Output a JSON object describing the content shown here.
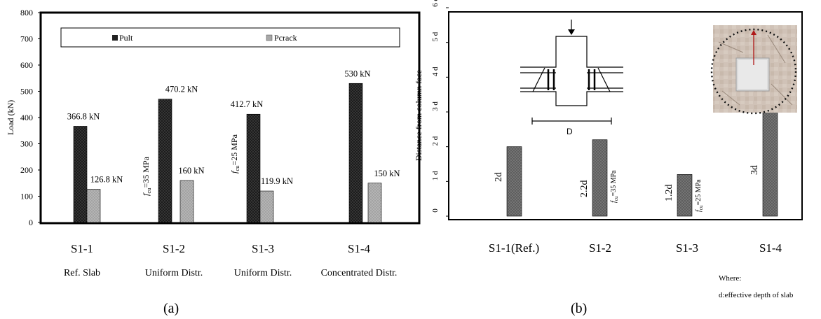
{
  "figure_a": {
    "panel_label": "(a)",
    "category_notes": [
      "Ref. Slab",
      "Uniform Distr.",
      "Uniform Distr.",
      "Concentrated Distr."
    ],
    "bar_notes": [
      "",
      "35 MPa",
      "25 MPa",
      ""
    ]
  },
  "figure_b": {
    "panel_label": "(b)",
    "where_title": "Where:",
    "where_text": "d:effective depth of slab",
    "sketch_label": "D",
    "bar_notes": [
      "",
      "35 MPa",
      "25 MPa",
      ""
    ]
  },
  "chart_data": [
    {
      "type": "bar",
      "title": "",
      "ylabel": "Load (kN)",
      "xlabel": "",
      "ylim": [
        0,
        800
      ],
      "yticks": [
        "0",
        "100",
        "200",
        "300",
        "400",
        "500",
        "600",
        "700",
        "800"
      ],
      "categories": [
        "S1-1",
        "S1-2",
        "S1-3",
        "S1-4"
      ],
      "legend_position": "top",
      "grid": false,
      "series": [
        {
          "name": "Pult",
          "color": "#222222",
          "values": [
            366.8,
            470.2,
            412.7,
            530
          ],
          "labels": [
            "366.8 kN",
            "470.2 kN",
            "412.7 kN",
            "530 kN"
          ]
        },
        {
          "name": "Pcrack",
          "color": "#a8a8a8",
          "values": [
            126.8,
            160,
            119.9,
            150
          ],
          "labels": [
            "126.8 kN",
            "160 kN",
            "119.9 kN",
            "150 kN"
          ]
        }
      ]
    },
    {
      "type": "bar",
      "title": "",
      "ylabel": "Distance from column face",
      "xlabel": "",
      "ylim": [
        0,
        6
      ],
      "yticks": [
        "0",
        "1 d",
        "2 d",
        "3 d",
        "4 d",
        "5 d",
        "6 d"
      ],
      "categories": [
        "S1-1(Ref.)",
        "S1-2",
        "S1-3",
        "S1-4"
      ],
      "grid": false,
      "series": [
        {
          "color": "#6e6e6e",
          "values": [
            2,
            2.2,
            1.2,
            3
          ],
          "labels": [
            "2d",
            "2.2d",
            "1.2d",
            "3d"
          ]
        }
      ]
    }
  ]
}
